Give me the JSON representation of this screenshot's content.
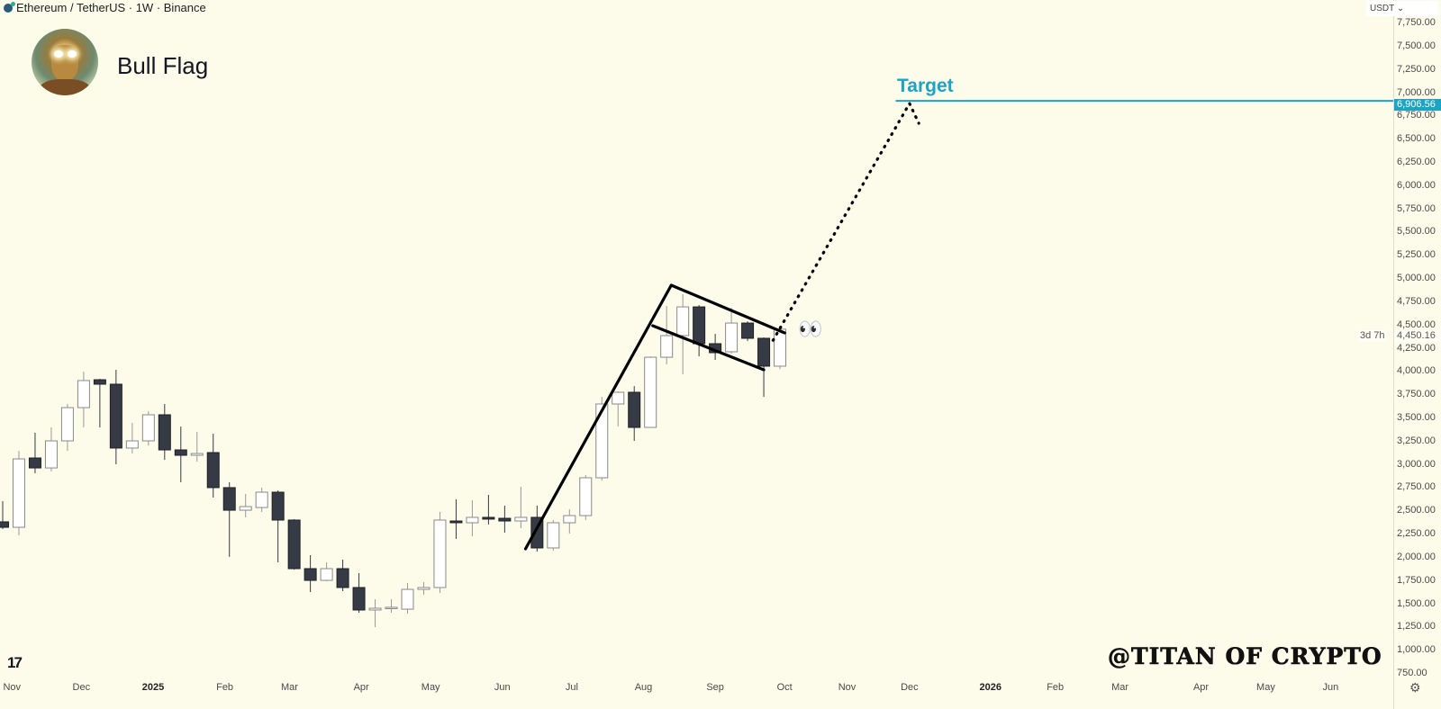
{
  "header": {
    "symbol_title": "Ethereum / TetherUS · 1W · Binance",
    "icon": "ethereum-coin-icon"
  },
  "annotation_title": "Bull Flag",
  "currency_selector": "USDT ⌄",
  "target_label": "Target",
  "target_price_label": "6,906.56",
  "last_price_label": "4,450.16",
  "countdown_label": "3d 7h",
  "watermark": "@TITAN OF CRYPTO",
  "emoji": "👀",
  "tv_logo": "17",
  "colors": {
    "background": "#fdfbe9",
    "up_body": "#ffffff",
    "down_body": "#363a45",
    "target": "#1ba4c6",
    "drawing": "#000000"
  },
  "chart_data": {
    "type": "candlestick",
    "interval": "1W",
    "ylim": [
      750,
      7750
    ],
    "y_ticks": [
      "750.00",
      "1,000.00",
      "1,250.00",
      "1,500.00",
      "1,750.00",
      "2,000.00",
      "2,250.00",
      "2,500.00",
      "2,750.00",
      "3,000.00",
      "3,250.00",
      "3,500.00",
      "3,750.00",
      "4,000.00",
      "4,250.00",
      "4,500.00",
      "4,750.00",
      "5,000.00",
      "5,250.00",
      "5,500.00",
      "5,750.00",
      "6,000.00",
      "6,250.00",
      "6,500.00",
      "6,750.00",
      "7,000.00",
      "7,250.00",
      "7,500.00",
      "7,750.00"
    ],
    "x_ticks": [
      {
        "label": "Nov",
        "date": "2024-11-01"
      },
      {
        "label": "Dec",
        "date": "2024-12-01"
      },
      {
        "label": "2025",
        "date": "2025-01-01",
        "bold": true
      },
      {
        "label": "Feb",
        "date": "2025-02-01"
      },
      {
        "label": "Mar",
        "date": "2025-03-01"
      },
      {
        "label": "Apr",
        "date": "2025-04-01"
      },
      {
        "label": "May",
        "date": "2025-05-01"
      },
      {
        "label": "Jun",
        "date": "2025-06-01"
      },
      {
        "label": "Jul",
        "date": "2025-07-01"
      },
      {
        "label": "Aug",
        "date": "2025-08-01"
      },
      {
        "label": "Sep",
        "date": "2025-09-01"
      },
      {
        "label": "Oct",
        "date": "2025-10-01"
      },
      {
        "label": "Nov",
        "date": "2025-10-28"
      },
      {
        "label": "Dec",
        "date": "2025-11-24"
      },
      {
        "label": "2026",
        "date": "2025-12-29",
        "bold": true
      },
      {
        "label": "Feb",
        "date": "2026-01-26"
      },
      {
        "label": "Mar",
        "date": "2026-02-23"
      },
      {
        "label": "Apr",
        "date": "2026-03-30"
      },
      {
        "label": "May",
        "date": "2026-04-27"
      },
      {
        "label": "Jun",
        "date": "2026-05-25"
      }
    ],
    "candles_fields": [
      "week",
      "open",
      "high",
      "low",
      "close"
    ],
    "candles": [
      [
        "2024-10-28",
        2377,
        2599,
        2299,
        2318
      ],
      [
        "2024-11-04",
        2318,
        3141,
        2231,
        3054
      ],
      [
        "2024-11-11",
        3064,
        3335,
        2899,
        2957
      ],
      [
        "2024-11-18",
        2957,
        3393,
        2919,
        3248
      ],
      [
        "2024-11-25",
        3248,
        3645,
        3141,
        3606
      ],
      [
        "2024-12-02",
        3606,
        3993,
        3393,
        3897
      ],
      [
        "2024-12-09",
        3906,
        3916,
        3393,
        3858
      ],
      [
        "2024-12-16",
        3858,
        4013,
        2996,
        3171
      ],
      [
        "2024-12-23",
        3171,
        3441,
        3112,
        3248
      ],
      [
        "2024-12-30",
        3248,
        3567,
        3199,
        3529
      ],
      [
        "2025-01-06",
        3529,
        3645,
        3044,
        3151
      ],
      [
        "2025-01-13",
        3151,
        3402,
        2803,
        3093
      ],
      [
        "2025-01-20",
        3093,
        3345,
        3025,
        3112
      ],
      [
        "2025-01-27",
        3122,
        3325,
        2638,
        2745
      ],
      [
        "2025-02-03",
        2745,
        2803,
        2000,
        2502
      ],
      [
        "2025-02-10",
        2502,
        2677,
        2425,
        2541
      ],
      [
        "2025-02-17",
        2531,
        2745,
        2483,
        2696
      ],
      [
        "2025-02-24",
        2696,
        2715,
        1941,
        2396
      ],
      [
        "2025-03-03",
        2396,
        2406,
        1863,
        1873
      ],
      [
        "2025-03-10",
        1873,
        2018,
        1621,
        1747
      ],
      [
        "2025-03-17",
        1747,
        1941,
        1737,
        1873
      ],
      [
        "2025-03-24",
        1873,
        1970,
        1631,
        1670
      ],
      [
        "2025-03-31",
        1670,
        1825,
        1399,
        1428
      ],
      [
        "2025-04-07",
        1428,
        1544,
        1244,
        1447
      ],
      [
        "2025-04-14",
        1447,
        1544,
        1399,
        1457
      ],
      [
        "2025-04-21",
        1437,
        1718,
        1389,
        1650
      ],
      [
        "2025-04-28",
        1650,
        1728,
        1592,
        1670
      ],
      [
        "2025-05-05",
        1670,
        2483,
        1612,
        2396
      ],
      [
        "2025-05-12",
        2386,
        2619,
        2193,
        2367
      ],
      [
        "2025-05-19",
        2367,
        2609,
        2222,
        2425
      ],
      [
        "2025-05-26",
        2425,
        2667,
        2348,
        2406
      ],
      [
        "2025-06-02",
        2415,
        2551,
        2260,
        2386
      ],
      [
        "2025-06-09",
        2386,
        2754,
        2309,
        2425
      ],
      [
        "2025-06-16",
        2425,
        2551,
        2057,
        2096
      ],
      [
        "2025-06-23",
        2096,
        2396,
        2067,
        2367
      ],
      [
        "2025-06-30",
        2367,
        2512,
        2251,
        2444
      ],
      [
        "2025-07-07",
        2444,
        2880,
        2396,
        2851
      ],
      [
        "2025-07-14",
        2851,
        3722,
        2822,
        3645
      ],
      [
        "2025-07-21",
        3645,
        3780,
        3403,
        3771
      ],
      [
        "2025-07-28",
        3771,
        3838,
        3248,
        3393
      ],
      [
        "2025-08-04",
        3393,
        4158,
        3393,
        4148
      ],
      [
        "2025-08-11",
        4148,
        4700,
        4071,
        4381
      ],
      [
        "2025-08-18",
        4381,
        4826,
        3964,
        4690
      ],
      [
        "2025-08-25",
        4690,
        4710,
        4158,
        4294
      ],
      [
        "2025-09-01",
        4294,
        4400,
        4119,
        4197
      ],
      [
        "2025-09-08",
        4207,
        4681,
        4187,
        4516
      ],
      [
        "2025-09-15",
        4516,
        4535,
        4323,
        4352
      ],
      [
        "2025-09-22",
        4352,
        4361,
        3722,
        4052
      ],
      [
        "2025-09-29",
        4052,
        4460,
        4020,
        4450.16
      ]
    ],
    "horizontal_lines": [
      {
        "label": "Target",
        "price": 6906.56,
        "from": "2025-11-18"
      }
    ],
    "trendlines": [
      {
        "name": "flagpole",
        "from": [
          "2025-06-11",
          2086
        ],
        "to": [
          "2025-08-13",
          4923
        ]
      },
      {
        "name": "flag-upper",
        "from": [
          "2025-08-13",
          4923
        ],
        "to": [
          "2025-10-01",
          4410
        ]
      },
      {
        "name": "flag-lower",
        "from": [
          "2025-08-05",
          4487
        ],
        "to": [
          "2025-09-22",
          4013
        ]
      }
    ],
    "projection": {
      "style": "dotted",
      "points": [
        [
          "2025-09-26",
          4330
        ],
        [
          "2025-11-24",
          6879
        ],
        [
          "2025-11-28",
          6666
        ]
      ]
    }
  }
}
